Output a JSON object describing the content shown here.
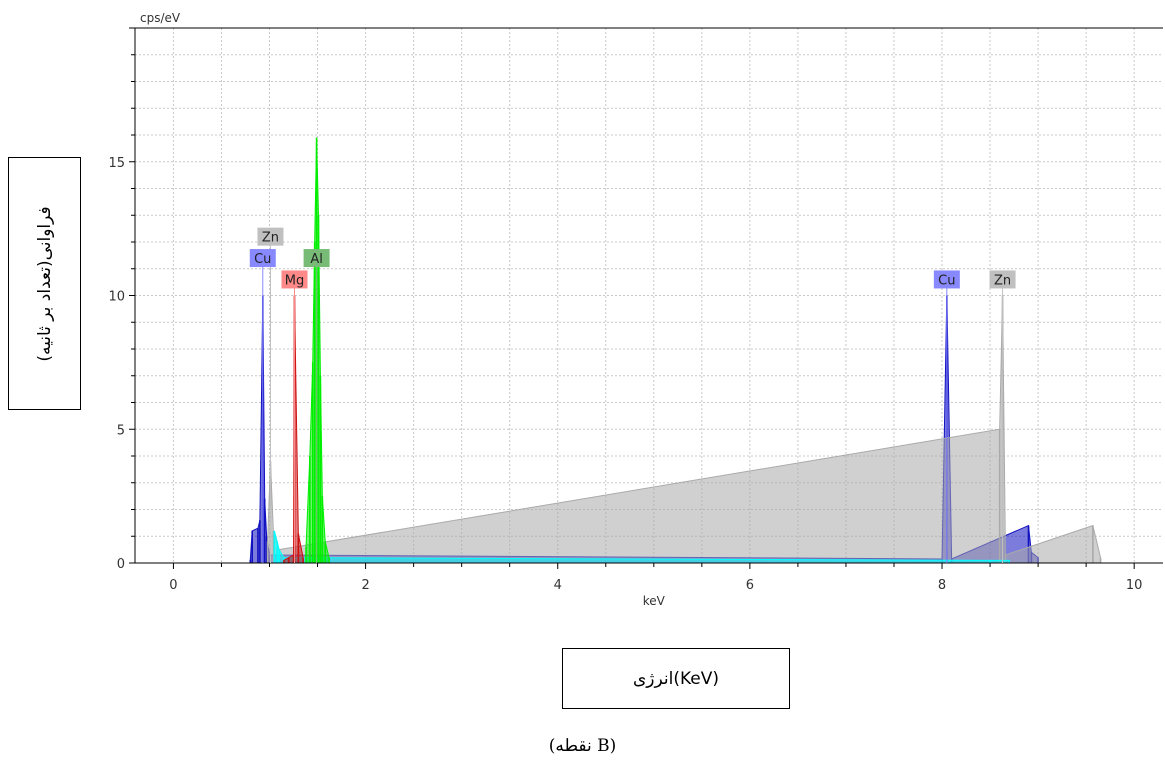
{
  "chart_data": {
    "type": "line",
    "title": "",
    "y_unit": "cps/eV",
    "x_unit": "keV",
    "xlim": [
      -0.4,
      10.3
    ],
    "ylim": [
      0,
      20
    ],
    "x_ticks": [
      0,
      2,
      4,
      6,
      8,
      10
    ],
    "x_tick_labels": [
      "0",
      "2",
      "4",
      "6",
      "8",
      "10"
    ],
    "y_ticks": [
      0,
      5,
      10,
      15
    ],
    "y_tick_labels": [
      "0",
      "5",
      "10",
      "15"
    ],
    "grid": true,
    "series": [
      {
        "color": "#1010c0",
        "points": [
          [
            0.8,
            0.12
          ],
          [
            0.82,
            1.2
          ],
          [
            0.88,
            1.3
          ],
          [
            0.9,
            1.6
          ],
          [
            0.93,
            10.0
          ],
          [
            0.95,
            2.4
          ],
          [
            0.97,
            1.0
          ],
          [
            1.0,
            0.3
          ],
          [
            8.0,
            0.15
          ],
          [
            8.05,
            10.0
          ],
          [
            8.1,
            0.15
          ],
          [
            8.9,
            1.4
          ],
          [
            8.93,
            0.4
          ],
          [
            9.0,
            0.2
          ]
        ]
      },
      {
        "color": "#aaaaaa",
        "points": [
          [
            0.98,
            0.8
          ],
          [
            1.01,
            3.8
          ],
          [
            1.04,
            1.2
          ],
          [
            1.1,
            0.5
          ],
          [
            8.6,
            5.0
          ],
          [
            8.63,
            10.0
          ],
          [
            8.66,
            0.3
          ],
          [
            9.57,
            1.4
          ],
          [
            9.65,
            0.2
          ]
        ]
      },
      {
        "color": "#00ffff",
        "points": [
          [
            1.05,
            1.2
          ],
          [
            1.08,
            0.8
          ],
          [
            1.1,
            0.5
          ],
          [
            1.15,
            0.2
          ],
          [
            8.5,
            0.1
          ],
          [
            8.7,
            0.1
          ]
        ]
      },
      {
        "color": "#cc1111",
        "points": [
          [
            1.15,
            0.1
          ],
          [
            1.2,
            0.2
          ],
          [
            1.25,
            0.3
          ],
          [
            1.26,
            10.0
          ],
          [
            1.3,
            1.1
          ],
          [
            1.35,
            0.2
          ]
        ]
      },
      {
        "color": "#00ee00",
        "points": [
          [
            1.38,
            0.6
          ],
          [
            1.42,
            4.0
          ],
          [
            1.45,
            7.5
          ],
          [
            1.47,
            12.0
          ],
          [
            1.49,
            15.9
          ],
          [
            1.51,
            13.0
          ],
          [
            1.53,
            7.0
          ],
          [
            1.55,
            2.5
          ],
          [
            1.58,
            0.8
          ],
          [
            1.62,
            0.2
          ]
        ]
      }
    ],
    "peak_labels": [
      {
        "text": "Zn",
        "x": 1.01,
        "y": 12.2,
        "bg": "#c0c0c0"
      },
      {
        "text": "Cu",
        "x": 0.93,
        "y": 11.4,
        "bg": "#8888ff"
      },
      {
        "text": "Mg",
        "x": 1.26,
        "y": 10.6,
        "bg": "#ff8888"
      },
      {
        "text": "Al",
        "x": 1.49,
        "y": 11.4,
        "bg": "#77bb77"
      },
      {
        "text": "Cu",
        "x": 8.05,
        "y": 10.6,
        "bg": "#8888ff"
      },
      {
        "text": "Zn",
        "x": 8.63,
        "y": 10.6,
        "bg": "#c0c0c0"
      }
    ]
  },
  "ylabel_text": "فراوانی(تعداد بر ثانیه)",
  "xlabel_text": "انرژی(KeV)",
  "caption_text": "(نقطه B)"
}
